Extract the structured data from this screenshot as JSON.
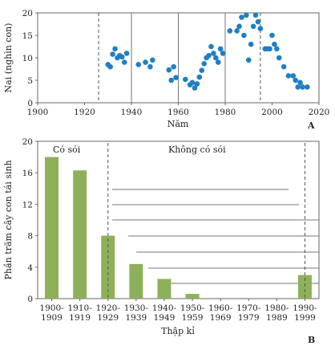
{
  "chart_data": [
    {
      "type": "scatter",
      "panel_label": "A",
      "xlabel": "Năm",
      "ylabel": "Nai (nghìn con)",
      "xlim": [
        1900,
        2020
      ],
      "ylim": [
        0,
        20
      ],
      "xticks": [
        "1900",
        "1920",
        "1940",
        "1960",
        "1980",
        "2000",
        "2020"
      ],
      "yticks": [
        "0",
        "5",
        "10",
        "15",
        "20"
      ],
      "x_tick_values": [
        1900,
        1920,
        1940,
        1960,
        1980,
        2000,
        2020
      ],
      "y_tick_values": [
        0,
        5,
        10,
        15,
        20
      ],
      "dashed_vlines": [
        1926,
        1995
      ],
      "solid_vlines": [
        1940,
        1960,
        1980
      ],
      "color": "#1f7fc4",
      "series": [
        {
          "x": [
            1930,
            1931,
            1932,
            1933,
            1934,
            1935,
            1936,
            1937,
            1938,
            1943,
            1946,
            1948,
            1949,
            1956,
            1957,
            1958,
            1959,
            1963,
            1965,
            1966,
            1967,
            1968,
            1969,
            1970,
            1971,
            1972,
            1973,
            1974,
            1975,
            1976,
            1977,
            1978,
            1979,
            1982,
            1985,
            1986,
            1987,
            1988,
            1989,
            1990,
            1991,
            1992,
            1993,
            1994,
            1995,
            1997,
            1998,
            1999,
            2000,
            2001,
            2002,
            2003,
            2005,
            2007,
            2009,
            2010,
            2011,
            2012,
            2013,
            2015
          ],
          "y": [
            8.5,
            8,
            10.8,
            12,
            10,
            10.5,
            10.2,
            9,
            11,
            8.5,
            9,
            8,
            9.5,
            7.3,
            5,
            8,
            5.6,
            5.2,
            4,
            4.5,
            3.3,
            4.2,
            5.7,
            7.2,
            8.7,
            10,
            10.5,
            12.5,
            11,
            10,
            9,
            12,
            11,
            16,
            16,
            17,
            19,
            15,
            19.5,
            9.5,
            13,
            17,
            19.5,
            18,
            16.5,
            12,
            12,
            12,
            15,
            13,
            12,
            10,
            8,
            6,
            6,
            5,
            3.5,
            4.5,
            3.5,
            3.5
          ]
        }
      ]
    },
    {
      "type": "bar",
      "panel_label": "B",
      "xlabel": "Thập kỉ",
      "ylabel": "Phần trăm cây con tái sinh",
      "ylim": [
        0,
        20
      ],
      "yticks": [
        "0",
        "4",
        "8",
        "12",
        "16",
        "20"
      ],
      "y_tick_values": [
        0,
        4,
        8,
        12,
        16,
        20
      ],
      "categories": [
        [
          "1900-",
          "1909"
        ],
        [
          "1910-",
          "1919"
        ],
        [
          "1920-",
          "1929"
        ],
        [
          "1930-",
          "1939"
        ],
        [
          "1940-",
          "1949"
        ],
        [
          "1950-",
          "1959"
        ],
        [
          "1960-",
          "1969"
        ],
        [
          "1970-",
          "1979"
        ],
        [
          "1980-",
          "1989"
        ],
        [
          "1990-",
          "1999"
        ]
      ],
      "values": [
        18,
        16.3,
        8,
        4.4,
        2.5,
        0.6,
        0,
        0,
        0,
        3
      ],
      "color": "#8db15a",
      "annotations": [
        "Có sói",
        "Không có sói"
      ],
      "dashed_vline_categories": [
        2,
        9
      ]
    }
  ]
}
